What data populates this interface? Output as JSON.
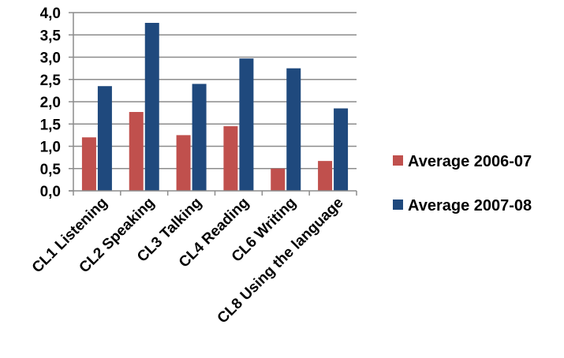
{
  "chart_data": {
    "type": "bar",
    "categories": [
      "CL1 Listening",
      "CL2 Speaking",
      "CL3 Talking",
      "CL4 Reading",
      "CL6 Writing",
      "CL8 Using the language"
    ],
    "series": [
      {
        "name": "Average 2006-07",
        "color": "#c0504d",
        "values": [
          1.2,
          1.77,
          1.25,
          1.45,
          0.5,
          0.67
        ]
      },
      {
        "name": "Average 2007-08",
        "color": "#1f497d",
        "values": [
          2.35,
          3.77,
          2.4,
          2.97,
          2.75,
          1.85
        ]
      }
    ],
    "y_ticks": [
      "4,0",
      "3,5",
      "3,0",
      "2,5",
      "2,0",
      "1,5",
      "1,0",
      "0,5",
      "0,0"
    ],
    "ylim": [
      0,
      4
    ],
    "grid": true,
    "legend_position": "right",
    "title": "",
    "xlabel": "",
    "ylabel": ""
  }
}
